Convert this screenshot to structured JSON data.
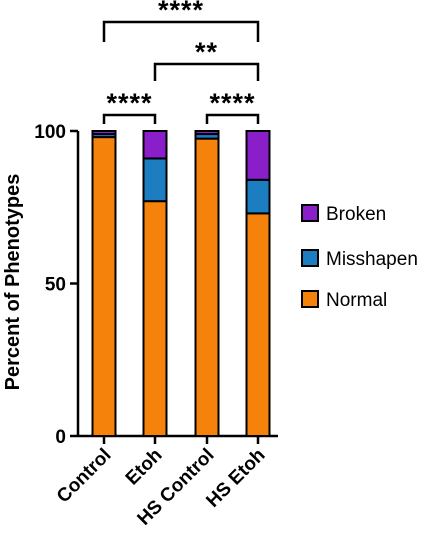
{
  "chart_data": {
    "type": "bar",
    "stacked": true,
    "categories": [
      "Control",
      "Etoh",
      "HS Control",
      "HS Etoh"
    ],
    "series": [
      {
        "name": "Normal",
        "values": [
          98,
          77,
          97.5,
          73
        ],
        "color": "#f5820b"
      },
      {
        "name": "Misshapen",
        "values": [
          1,
          14,
          1.5,
          11
        ],
        "color": "#1c7dc0"
      },
      {
        "name": "Broken",
        "values": [
          1,
          9,
          1,
          16
        ],
        "color": "#8a1fc9"
      }
    ],
    "ylabel": "Percent of Phenotypes",
    "ylim": [
      0,
      100
    ],
    "yticks": [
      0,
      50,
      100
    ],
    "legend": {
      "placement": "right",
      "order": [
        "Broken",
        "Misshapen",
        "Normal"
      ]
    },
    "significance": [
      {
        "from": "Control",
        "to": "HS Etoh",
        "label": "****"
      },
      {
        "from": "Etoh",
        "to": "HS Etoh",
        "label": "**"
      },
      {
        "from": "Control",
        "to": "Etoh",
        "label": "****"
      },
      {
        "from": "HS Control",
        "to": "HS Etoh",
        "label": "****"
      }
    ]
  }
}
